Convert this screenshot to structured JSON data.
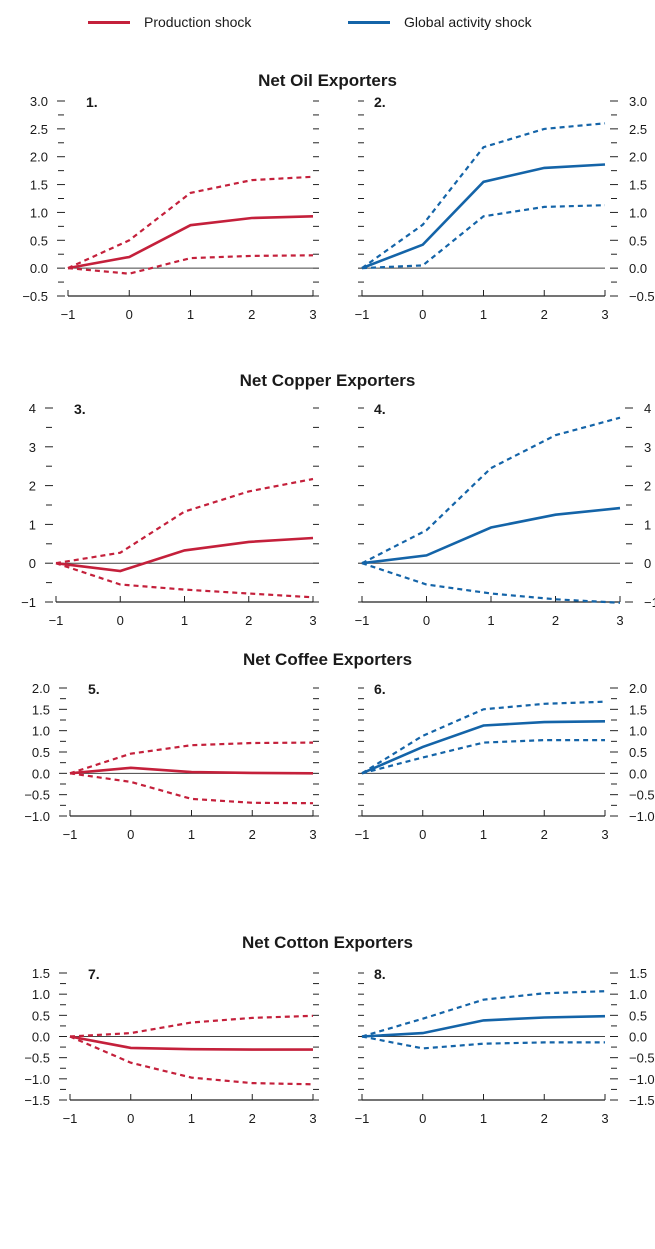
{
  "legend": {
    "production": {
      "label": "Production shock",
      "color": "#C4203B"
    },
    "global": {
      "label": "Global activity shock",
      "color": "#1464A8"
    }
  },
  "groups": [
    {
      "title": "Net Oil Exporters"
    },
    {
      "title": "Net Copper Exporters"
    },
    {
      "title": "Net Coffee Exporters"
    },
    {
      "title": "Net Cotton Exporters"
    }
  ],
  "chart_data": [
    {
      "type": "line",
      "panel": "1.",
      "x": [
        -1,
        0,
        1,
        2,
        3
      ],
      "xticks": [
        "−1",
        "0",
        "1",
        "2",
        "3"
      ],
      "ylim": [
        -0.5,
        3.0
      ],
      "yticks": [
        "−0.5",
        "0.0",
        "0.5",
        "1.0",
        "1.5",
        "2.0",
        "2.5",
        "3.0"
      ],
      "yaxis": "left",
      "series": [
        {
          "role": "estimate",
          "values": [
            0,
            0.2,
            0.77,
            0.9,
            0.93
          ]
        },
        {
          "role": "upper",
          "values": [
            0,
            0.5,
            1.35,
            1.58,
            1.64
          ]
        },
        {
          "role": "lower",
          "values": [
            0,
            -0.1,
            0.18,
            0.22,
            0.23
          ]
        }
      ]
    },
    {
      "type": "line",
      "panel": "2.",
      "x": [
        -1,
        0,
        1,
        2,
        3
      ],
      "xticks": [
        "−1",
        "0",
        "1",
        "2",
        "3"
      ],
      "ylim": [
        -0.5,
        3.0
      ],
      "yticks": [
        "−0.5",
        "0.0",
        "0.5",
        "1.0",
        "1.5",
        "2.0",
        "2.5",
        "3.0"
      ],
      "yaxis": "right",
      "series": [
        {
          "role": "estimate",
          "values": [
            0,
            0.42,
            1.55,
            1.8,
            1.86
          ]
        },
        {
          "role": "upper",
          "values": [
            0,
            0.78,
            2.17,
            2.5,
            2.6
          ]
        },
        {
          "role": "lower",
          "values": [
            0,
            0.05,
            0.93,
            1.1,
            1.13
          ]
        }
      ]
    },
    {
      "type": "line",
      "panel": "3.",
      "x": [
        -1,
        0,
        1,
        2,
        3
      ],
      "xticks": [
        "−1",
        "0",
        "1",
        "2",
        "3"
      ],
      "ylim": [
        -1,
        4
      ],
      "yticks": [
        "−1",
        "0",
        "1",
        "2",
        "3",
        "4"
      ],
      "yaxis": "left",
      "series": [
        {
          "role": "estimate",
          "values": [
            0,
            -0.2,
            0.33,
            0.55,
            0.65
          ]
        },
        {
          "role": "upper",
          "values": [
            0,
            0.27,
            1.33,
            1.85,
            2.17
          ]
        },
        {
          "role": "lower",
          "values": [
            0,
            -0.55,
            -0.68,
            -0.78,
            -0.88
          ]
        }
      ]
    },
    {
      "type": "line",
      "panel": "4.",
      "x": [
        -1,
        0,
        1,
        2,
        3
      ],
      "xticks": [
        "−1",
        "0",
        "1",
        "2",
        "3"
      ],
      "ylim": [
        -1,
        4
      ],
      "yticks": [
        "−1",
        "0",
        "1",
        "2",
        "3",
        "4"
      ],
      "yaxis": "right",
      "series": [
        {
          "role": "estimate",
          "values": [
            0,
            0.2,
            0.92,
            1.25,
            1.42
          ]
        },
        {
          "role": "upper",
          "values": [
            0,
            0.85,
            2.45,
            3.3,
            3.75
          ]
        },
        {
          "role": "lower",
          "values": [
            0,
            -0.55,
            -0.78,
            -0.93,
            -1.02
          ]
        }
      ]
    },
    {
      "type": "line",
      "panel": "5.",
      "x": [
        -1,
        0,
        1,
        2,
        3
      ],
      "xticks": [
        "−1",
        "0",
        "1",
        "2",
        "3"
      ],
      "ylim": [
        -1.0,
        2.0
      ],
      "yticks": [
        "−1.0",
        "−0.5",
        "0.0",
        "0.5",
        "1.0",
        "1.5",
        "2.0"
      ],
      "yaxis": "left",
      "series": [
        {
          "role": "estimate",
          "values": [
            0,
            0.13,
            0.03,
            0.01,
            0.0
          ]
        },
        {
          "role": "upper",
          "values": [
            0,
            0.46,
            0.66,
            0.71,
            0.72
          ]
        },
        {
          "role": "lower",
          "values": [
            0,
            -0.2,
            -0.6,
            -0.69,
            -0.7
          ]
        }
      ]
    },
    {
      "type": "line",
      "panel": "6.",
      "x": [
        -1,
        0,
        1,
        2,
        3
      ],
      "xticks": [
        "−1",
        "0",
        "1",
        "2",
        "3"
      ],
      "ylim": [
        -1.0,
        2.0
      ],
      "yticks": [
        "−1.0",
        "−0.5",
        "0.0",
        "0.5",
        "1.0",
        "1.5",
        "2.0"
      ],
      "yaxis": "right",
      "series": [
        {
          "role": "estimate",
          "values": [
            0,
            0.62,
            1.12,
            1.2,
            1.22
          ]
        },
        {
          "role": "upper",
          "values": [
            0,
            0.88,
            1.5,
            1.63,
            1.68
          ]
        },
        {
          "role": "lower",
          "values": [
            0,
            0.37,
            0.72,
            0.78,
            0.78
          ]
        }
      ]
    },
    {
      "type": "line",
      "panel": "7.",
      "x": [
        -1,
        0,
        1,
        2,
        3
      ],
      "xticks": [
        "−1",
        "0",
        "1",
        "2",
        "3"
      ],
      "ylim": [
        -1.5,
        1.5
      ],
      "yticks": [
        "−1.5",
        "−1.0",
        "−0.5",
        "0.0",
        "0.5",
        "1.0",
        "1.5"
      ],
      "yaxis": "left",
      "series": [
        {
          "role": "estimate",
          "values": [
            0,
            -0.27,
            -0.3,
            -0.31,
            -0.31
          ]
        },
        {
          "role": "upper",
          "values": [
            0,
            0.08,
            0.33,
            0.44,
            0.49
          ]
        },
        {
          "role": "lower",
          "values": [
            0,
            -0.62,
            -0.97,
            -1.1,
            -1.13
          ]
        }
      ]
    },
    {
      "type": "line",
      "panel": "8.",
      "x": [
        -1,
        0,
        1,
        2,
        3
      ],
      "xticks": [
        "−1",
        "0",
        "1",
        "2",
        "3"
      ],
      "ylim": [
        -1.5,
        1.5
      ],
      "yticks": [
        "−1.5",
        "−1.0",
        "−0.5",
        "0.0",
        "0.5",
        "1.0",
        "1.5"
      ],
      "yaxis": "right",
      "series": [
        {
          "role": "estimate",
          "values": [
            0,
            0.08,
            0.38,
            0.45,
            0.48
          ]
        },
        {
          "role": "upper",
          "values": [
            0,
            0.42,
            0.87,
            1.02,
            1.07
          ]
        },
        {
          "role": "lower",
          "values": [
            0,
            -0.28,
            -0.17,
            -0.14,
            -0.14
          ]
        }
      ]
    }
  ]
}
